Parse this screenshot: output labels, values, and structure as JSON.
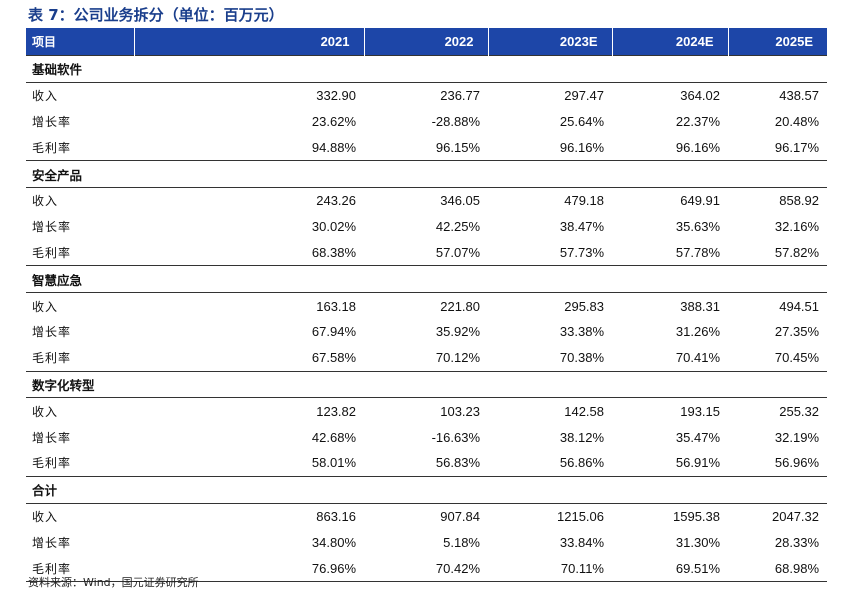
{
  "title": "表 7：公司业务拆分（单位：百万元）",
  "header": [
    "项目",
    "2021",
    "2022",
    "2023E",
    "2024E",
    "2025E"
  ],
  "sections": [
    {
      "name": "基础软件",
      "rows": [
        {
          "label": "收入",
          "values": [
            "332.90",
            "236.77",
            "297.47",
            "364.02",
            "438.57"
          ]
        },
        {
          "label": "增长率",
          "values": [
            "23.62%",
            "-28.88%",
            "25.64%",
            "22.37%",
            "20.48%"
          ]
        },
        {
          "label": "毛利率",
          "values": [
            "94.88%",
            "96.15%",
            "96.16%",
            "96.16%",
            "96.17%"
          ]
        }
      ]
    },
    {
      "name": "安全产品",
      "rows": [
        {
          "label": "收入",
          "values": [
            "243.26",
            "346.05",
            "479.18",
            "649.91",
            "858.92"
          ]
        },
        {
          "label": "增长率",
          "values": [
            "30.02%",
            "42.25%",
            "38.47%",
            "35.63%",
            "32.16%"
          ]
        },
        {
          "label": "毛利率",
          "values": [
            "68.38%",
            "57.07%",
            "57.73%",
            "57.78%",
            "57.82%"
          ]
        }
      ]
    },
    {
      "name": "智慧应急",
      "rows": [
        {
          "label": "收入",
          "values": [
            "163.18",
            "221.80",
            "295.83",
            "388.31",
            "494.51"
          ]
        },
        {
          "label": "增长率",
          "values": [
            "67.94%",
            "35.92%",
            "33.38%",
            "31.26%",
            "27.35%"
          ]
        },
        {
          "label": "毛利率",
          "values": [
            "67.58%",
            "70.12%",
            "70.38%",
            "70.41%",
            "70.45%"
          ]
        }
      ]
    },
    {
      "name": "数字化转型",
      "rows": [
        {
          "label": "收入",
          "values": [
            "123.82",
            "103.23",
            "142.58",
            "193.15",
            "255.32"
          ]
        },
        {
          "label": "增长率",
          "values": [
            "42.68%",
            "-16.63%",
            "38.12%",
            "35.47%",
            "32.19%"
          ]
        },
        {
          "label": "毛利率",
          "values": [
            "58.01%",
            "56.83%",
            "56.86%",
            "56.91%",
            "56.96%"
          ]
        }
      ]
    },
    {
      "name": "合计",
      "rows": [
        {
          "label": "收入",
          "values": [
            "863.16",
            "907.84",
            "1215.06",
            "1595.38",
            "2047.32"
          ]
        },
        {
          "label": "增长率",
          "values": [
            "34.80%",
            "5.18%",
            "33.84%",
            "31.30%",
            "28.33%"
          ]
        },
        {
          "label": "毛利率",
          "values": [
            "76.96%",
            "70.42%",
            "70.11%",
            "69.51%",
            "68.98%"
          ]
        }
      ]
    }
  ],
  "source": "资料来源：Wind，国元证券研究所",
  "colors": {
    "title": "#1a3e8c",
    "header_bg": "#1d46a8",
    "header_text": "#ffffff"
  }
}
